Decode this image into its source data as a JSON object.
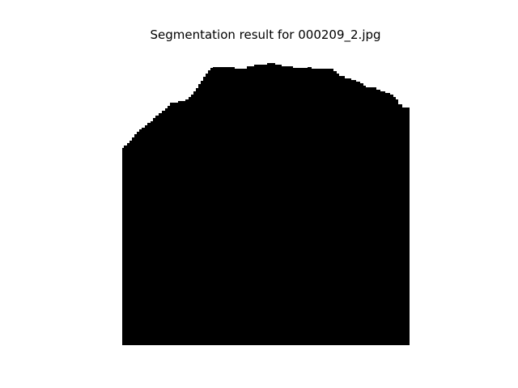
{
  "figure": {
    "title": "Segmentation result for 000209_2.jpg",
    "colors": {
      "background": "#ffffff",
      "mask": "#000000",
      "text": "#000000"
    }
  }
}
